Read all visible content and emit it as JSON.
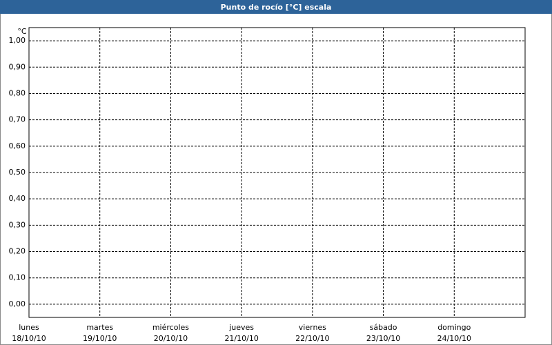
{
  "chart_data": {
    "type": "line",
    "title": "Punto de rocío [°C] escala",
    "y_label": "°C",
    "categories": [
      "lunes",
      "martes",
      "miércoles",
      "jueves",
      "viernes",
      "sábado",
      "domingo"
    ],
    "dates": [
      "18/10/10",
      "19/10/10",
      "20/10/10",
      "21/10/10",
      "22/10/10",
      "23/10/10",
      "24/10/10"
    ],
    "series": [],
    "ylim": [
      -0.05,
      1.05
    ],
    "yticks": [
      {
        "value": 0,
        "label": "0,00"
      },
      {
        "value": 0.1,
        "label": "0,10"
      },
      {
        "value": 0.2,
        "label": "0,20"
      },
      {
        "value": 0.3,
        "label": "0,30"
      },
      {
        "value": 0.4,
        "label": "0,40"
      },
      {
        "value": 0.5,
        "label": "0,50"
      },
      {
        "value": 0.6,
        "label": "0,60"
      },
      {
        "value": 0.7,
        "label": "0,70"
      },
      {
        "value": 0.8,
        "label": "0,80"
      },
      {
        "value": 0.9,
        "label": "0,90"
      },
      {
        "value": 1,
        "label": "1,00"
      }
    ],
    "grid": true,
    "title_bar_color": "#2d6399"
  }
}
